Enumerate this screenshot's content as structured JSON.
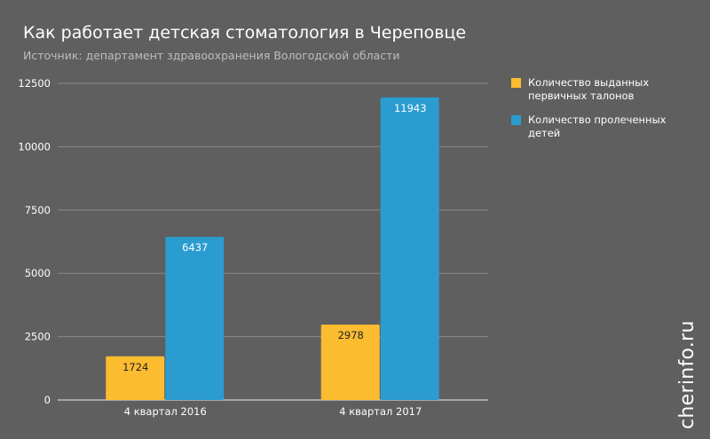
{
  "chart_data": {
    "type": "bar",
    "title": "Как работает детская стоматология в Череповце",
    "subtitle": "Источник: департамент здравоохранения Вологодской области",
    "categories": [
      "4 квартал 2016",
      "4 квартал 2017"
    ],
    "series": [
      {
        "name": "Количество выданных первичных талонов",
        "values": [
          1724,
          2978
        ],
        "color": "#fbbc30",
        "label_color": "#222222"
      },
      {
        "name": "Количество пролеченных детей",
        "values": [
          6437,
          11943
        ],
        "color": "#2b9cd0",
        "label_color": "#ffffff"
      }
    ],
    "yticks": [
      0,
      2500,
      5000,
      7500,
      10000,
      12500
    ],
    "ylim": [
      0,
      12500
    ],
    "grid": true,
    "legend": "right"
  },
  "watermark": "cherinfo.ru",
  "colors": {
    "background": "#5f5f5f",
    "grid": "#8a8a8a",
    "baseline": "#d0d0d0"
  }
}
